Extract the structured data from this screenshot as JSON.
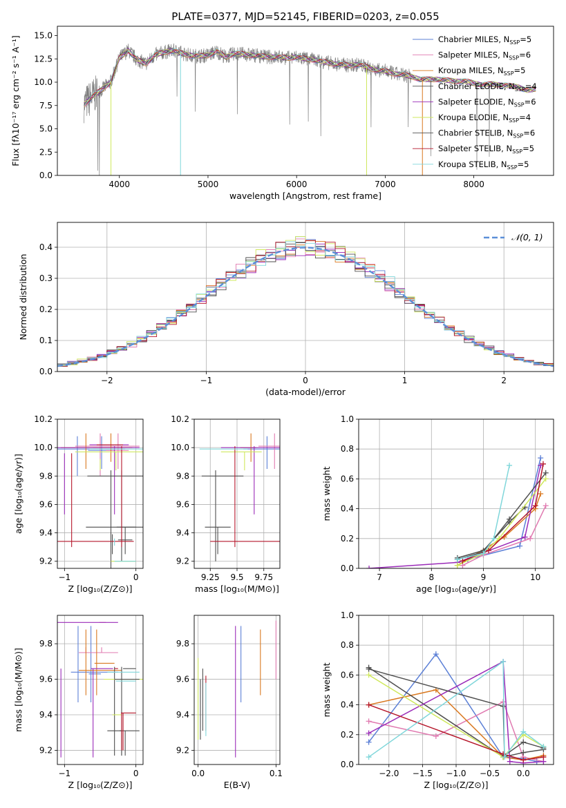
{
  "figure": {
    "title": "PLATE=0377, MJD=52145, FIBERID=0203, z=0.055"
  },
  "chart_data": [
    {
      "id": "spectrum",
      "type": "line",
      "title": "PLATE=0377, MJD=52145, FIBERID=0203, z=0.055",
      "xlabel": "wavelength [Angstrom, rest frame]",
      "ylabel": "Flux [fλ10⁻¹⁷ erg cm⁻² s⁻¹ A⁻¹]",
      "xlim": [
        3300,
        8900
      ],
      "ylim": [
        0,
        16
      ],
      "xticks": [
        4000,
        5000,
        6000,
        7000,
        8000
      ],
      "yticks": [
        0.0,
        2.5,
        5.0,
        7.5,
        10.0,
        12.5,
        15.0
      ],
      "grid": false,
      "legend_position": "top-right",
      "observed_color": "#808080",
      "spectrum_x": [
        3600,
        3700,
        3800,
        3900,
        4000,
        4100,
        4200,
        4300,
        4400,
        4500,
        4600,
        4700,
        4800,
        4900,
        5000,
        5100,
        5200,
        5300,
        5400,
        5500,
        5600,
        5700,
        5800,
        5900,
        6000,
        6100,
        6200,
        6300,
        6400,
        6500,
        6600,
        6700,
        6800,
        6900,
        7000,
        7100,
        7200,
        7300,
        7400,
        7500,
        7600,
        7700,
        7800,
        7900,
        8000,
        8100,
        8200,
        8300,
        8400,
        8500,
        8600,
        8700
      ],
      "spectrum_y": [
        7.6,
        8.5,
        9.2,
        10.0,
        12.6,
        13.4,
        12.4,
        12.0,
        12.9,
        13.2,
        13.4,
        13.1,
        12.9,
        12.8,
        12.9,
        13.3,
        12.7,
        13.1,
        13.0,
        12.9,
        12.8,
        12.7,
        12.7,
        12.6,
        12.7,
        12.5,
        12.4,
        12.2,
        12.0,
        11.9,
        11.8,
        11.9,
        11.6,
        11.3,
        11.2,
        10.9,
        10.8,
        10.6,
        10.3,
        10.3,
        10.3,
        10.2,
        10.1,
        10.1,
        9.9,
        9.7,
        9.8,
        9.7,
        9.6,
        9.5,
        9.1,
        9.3
      ],
      "series": [
        {
          "name": "Chabrier MILES, N",
          "n": "=5",
          "color": "#5b7fd6"
        },
        {
          "name": "Salpeter MILES, N",
          "n": "=6",
          "color": "#e079b0"
        },
        {
          "name": "Kroupa MILES, N",
          "n": "=5",
          "color": "#d9781f"
        },
        {
          "name": "Chabrier ELODIE, N",
          "n": "=4",
          "color": "#4d4d4d"
        },
        {
          "name": "Salpeter ELODIE, N",
          "n": "=6",
          "color": "#9a2ab8"
        },
        {
          "name": "Kroupa ELODIE, N",
          "n": "=4",
          "color": "#cfe85c"
        },
        {
          "name": "Chabrier STELIB, N",
          "n": "=6",
          "color": "#505050"
        },
        {
          "name": "Salpeter STELIB, N",
          "n": "=5",
          "color": "#b5162a"
        },
        {
          "name": "Kroupa STELIB, N",
          "n": "=5",
          "color": "#7fd6da"
        }
      ],
      "ssp_subscript": "SSP"
    },
    {
      "id": "residuals",
      "type": "line",
      "xlabel": "(data-model)/error",
      "ylabel": "Normed distribution",
      "xlim": [
        -2.5,
        2.5
      ],
      "ylim": [
        0,
        0.48
      ],
      "xticks": [
        -2,
        -1,
        0,
        1,
        2
      ],
      "yticks": [
        0.0,
        0.1,
        0.2,
        0.3,
        0.4
      ],
      "grid": true,
      "legend_position": "top-right",
      "reference_label": "𝒩(0, 1)",
      "reference_color": "#5b8fd8",
      "bin_width": 0.1,
      "bin_start": -2.5
    },
    {
      "id": "age_vs_Z",
      "type": "scatter",
      "xlabel": "Z [log₁₀(Z/Z⊙)]",
      "ylabel": "age  [log₁₀(age/yr)]",
      "xlim": [
        -1.1,
        0.1
      ],
      "ylim": [
        9.15,
        10.2
      ],
      "xticks": [
        -1,
        0
      ],
      "yticks": [
        9.2,
        9.4,
        9.6,
        9.8,
        10.0,
        10.2
      ],
      "grid": true
    },
    {
      "id": "age_vs_mass",
      "type": "scatter",
      "xlabel": "mass [log₁₀(M/M⊙)]",
      "ylabel": "",
      "xlim": [
        9.1,
        9.9
      ],
      "ylim": [
        9.15,
        10.2
      ],
      "xticks": [
        9.25,
        9.5,
        9.75
      ],
      "yticks": [
        9.2,
        9.4,
        9.6,
        9.8,
        10.0,
        10.2
      ],
      "grid": true
    },
    {
      "id": "weight_vs_age",
      "type": "line",
      "xlabel": "age  [log₁₀(age/yr)]",
      "ylabel": "mass weight",
      "xlim": [
        6.6,
        10.35
      ],
      "ylim": [
        0,
        1.0
      ],
      "xticks": [
        7,
        8,
        9,
        10
      ],
      "yticks": [
        0.0,
        0.2,
        0.4,
        0.6,
        0.8,
        1.0
      ],
      "grid": true
    },
    {
      "id": "mass_vs_Z",
      "type": "scatter",
      "xlabel": "Z [log₁₀(Z/Z⊙)]",
      "ylabel": "mass [log₁₀(M/M⊙)]",
      "xlim": [
        -1.1,
        0.1
      ],
      "ylim": [
        9.12,
        9.96
      ],
      "xticks": [
        -1,
        0
      ],
      "yticks": [
        9.2,
        9.4,
        9.6,
        9.8
      ],
      "grid": true
    },
    {
      "id": "mass_vs_ebv",
      "type": "scatter",
      "xlabel": "E(B-V)",
      "ylabel": "",
      "xlim": [
        -0.005,
        0.105
      ],
      "ylim": [
        9.12,
        9.96
      ],
      "xticks": [
        0.0,
        0.1
      ],
      "yticks": [
        9.2,
        9.4,
        9.6,
        9.8
      ],
      "grid": true
    },
    {
      "id": "weight_vs_Z",
      "type": "line",
      "xlabel": "Z [log₁₀(Z/Z⊙)]",
      "ylabel": "mass weight",
      "xlim": [
        -2.45,
        0.45
      ],
      "ylim": [
        0,
        1.0
      ],
      "xticks": [
        -2.0,
        -1.5,
        -1.0,
        -0.5,
        0.0
      ],
      "yticks": [
        0.0,
        0.2,
        0.4,
        0.6,
        0.8,
        1.0
      ],
      "grid": true
    }
  ],
  "fits": [
    {
      "name": "Chabrier MILES",
      "color": "#5b7fd6",
      "Z": [
        -0.82,
        -0.62,
        -0.48,
        -0.3
      ],
      "age": [
        9.85,
        9.98,
        10.08,
        9.99
      ],
      "mass": [
        9.61,
        9.78,
        9.92,
        9.99
      ],
      "Zm": [
        -0.81,
        -0.63,
        -0.49,
        -0.3
      ],
      "massZ": [
        9.47,
        9.63,
        9.9,
        9.64
      ],
      "ebv": 0.055,
      "ebv_m": [
        9.47,
        9.9
      ],
      "w_age": [
        [
          8.5,
          0.04
        ],
        [
          8.7,
          0.06
        ],
        [
          9.7,
          0.15
        ],
        [
          10.1,
          0.74
        ]
      ],
      "w_Z": [
        [
          -2.3,
          0.15
        ],
        [
          -1.3,
          0.74
        ],
        [
          -0.3,
          0.05
        ],
        [
          0.0,
          0.04
        ],
        [
          0.2,
          0.02
        ]
      ]
    },
    {
      "name": "Salpeter MILES",
      "color": "#e079b0",
      "Z": [
        -0.5,
        -0.37,
        -0.25,
        -0.1
      ],
      "age": [
        9.85,
        9.98,
        10.1,
        10.01
      ],
      "mass": [
        9.75,
        9.85,
        9.95,
        10.0
      ],
      "Zm": [
        -0.7,
        -0.48,
        -0.42,
        -0.3
      ],
      "massZ": [
        9.75,
        9.92,
        9.78,
        9.75
      ],
      "ebv": 0.1,
      "ebv_m": [
        9.6,
        9.93
      ],
      "w_age": [
        [
          8.6,
          0.02
        ],
        [
          9.0,
          0.09
        ],
        [
          9.9,
          0.2
        ],
        [
          10.2,
          0.42
        ]
      ],
      "w_Z": [
        [
          -2.3,
          0.29
        ],
        [
          -1.3,
          0.19
        ],
        [
          -0.3,
          0.42
        ],
        [
          0.0,
          0.05
        ],
        [
          0.3,
          0.02
        ]
      ]
    },
    {
      "name": "Kroupa MILES",
      "color": "#d9781f",
      "Z": [
        -0.7,
        -0.55,
        -0.35,
        -0.2
      ],
      "age": [
        9.9,
        10.0,
        10.1,
        10.0
      ],
      "mass": [
        9.58,
        9.63,
        9.7,
        9.68
      ],
      "Zm": [
        -0.7,
        -0.55,
        -0.3,
        -0.25
      ],
      "massZ": [
        9.51,
        9.69,
        9.88,
        9.65
      ],
      "ebv": 0.08,
      "ebv_m": [
        9.51,
        9.88
      ],
      "w_age": [
        [
          8.5,
          0.02
        ],
        [
          9.4,
          0.21
        ],
        [
          10.0,
          0.4
        ],
        [
          10.1,
          0.5
        ]
      ],
      "w_Z": [
        [
          -2.3,
          0.4
        ],
        [
          -1.3,
          0.5
        ],
        [
          -0.3,
          0.05
        ],
        [
          0.0,
          0.03
        ],
        [
          0.3,
          0.06
        ]
      ]
    },
    {
      "name": "Chabrier ELODIE",
      "color": "#4d4d4d",
      "Z": [
        -0.35,
        -0.22,
        -0.2,
        0.0
      ],
      "age": [
        9.2,
        9.44,
        9.84,
        9.44
      ],
      "mass": [
        9.25,
        9.3,
        9.33,
        9.44
      ],
      "Zm": [
        -0.3,
        -0.2,
        -0.2,
        0.0
      ],
      "massZ": [
        9.17,
        9.31,
        9.67,
        9.31
      ],
      "ebv": 0.003,
      "ebv_m": [
        9.26,
        9.6
      ],
      "w_age": [
        [
          8.5,
          0.07
        ],
        [
          9.0,
          0.12
        ],
        [
          9.5,
          0.31
        ],
        [
          9.8,
          0.41
        ]
      ],
      "w_Z": [
        [
          -2.3,
          0.65
        ],
        [
          -0.3,
          0.05
        ],
        [
          0.0,
          0.08
        ],
        [
          0.3,
          0.1
        ]
      ]
    },
    {
      "name": "Salpeter ELODIE",
      "color": "#9a2ab8",
      "Z": [
        -1.0,
        -0.6,
        -0.3,
        -0.1
      ],
      "age": [
        10.01,
        10.02,
        9.53,
        10.0
      ],
      "mass": [
        9.4,
        9.66,
        9.93,
        9.99
      ],
      "Zm": [
        -1.05,
        -0.6,
        -0.32,
        -0.3
      ],
      "massZ": [
        9.66,
        9.66,
        9.16,
        9.92
      ],
      "ebv": 0.048,
      "ebv_m": [
        9.16,
        9.9
      ],
      "w_age": [
        [
          6.8,
          0.0
        ],
        [
          8.5,
          0.04
        ],
        [
          9.8,
          0.21
        ],
        [
          10.1,
          0.69
        ]
      ],
      "w_Z": [
        [
          -2.3,
          0.21
        ],
        [
          -0.3,
          0.69
        ],
        [
          -0.2,
          0.02
        ],
        [
          0.0,
          0.01
        ],
        [
          0.3,
          0.02
        ]
      ]
    },
    {
      "name": "Kroupa ELODIE",
      "color": "#cfe85c",
      "Z": [
        -0.5,
        -0.3,
        -0.28,
        0.0
      ],
      "age": [
        9.97,
        9.2,
        9.84,
        9.97
      ],
      "mass": [
        9.4,
        9.57,
        9.6,
        9.73
      ],
      "Zm": [
        -0.35,
        -0.3,
        -0.2,
        0.05
      ],
      "massZ": [
        9.58,
        9.4,
        9.58,
        9.6
      ],
      "ebv": 0.0,
      "ebv_m": [
        9.26,
        9.72
      ],
      "w_age": [
        [
          8.5,
          0.02
        ],
        [
          9.0,
          0.1
        ],
        [
          9.3,
          0.2
        ],
        [
          10.2,
          0.6
        ]
      ],
      "w_Z": [
        [
          -2.3,
          0.6
        ],
        [
          -0.3,
          0.05
        ],
        [
          0.0,
          0.2
        ],
        [
          0.3,
          0.12
        ]
      ]
    },
    {
      "name": "Chabrier STELIB",
      "color": "#505050",
      "Z": [
        -0.33,
        -0.2,
        -0.15,
        -0.05
      ],
      "age": [
        9.44,
        9.35,
        9.25,
        9.8
      ],
      "mass": [
        9.22,
        9.32,
        9.44,
        9.56
      ],
      "Zm": [
        -0.2,
        -0.15,
        0.0,
        0.0
      ],
      "massZ": [
        9.17,
        9.66,
        9.31,
        9.6
      ],
      "ebv": 0.006,
      "ebv_m": [
        9.31,
        9.66
      ],
      "w_age": [
        [
          8.5,
          0.06
        ],
        [
          9.0,
          0.11
        ],
        [
          9.5,
          0.33
        ],
        [
          10.2,
          0.64
        ]
      ],
      "w_Z": [
        [
          -2.3,
          0.64
        ],
        [
          -0.3,
          0.39
        ],
        [
          -0.28,
          0.06
        ],
        [
          0.0,
          0.15
        ],
        [
          0.3,
          0.11
        ]
      ]
    },
    {
      "name": "Salpeter STELIB",
      "color": "#b5162a",
      "Z": [
        -0.9,
        -0.5,
        -0.2,
        -0.18
      ],
      "age": [
        10.01,
        10.02,
        9.3,
        9.34
      ],
      "mass": [
        9.3,
        9.48,
        9.5,
        9.98
      ],
      "Zm": [
        -0.2,
        -0.18,
        0.0,
        -0.3
      ],
      "massZ": [
        9.2,
        9.41,
        9.41,
        9.66
      ],
      "ebv": 0.01,
      "ebv_m": [
        9.31,
        9.62
      ],
      "w_age": [
        [
          8.6,
          0.05
        ],
        [
          9.1,
          0.12
        ],
        [
          10.0,
          0.42
        ],
        [
          10.15,
          0.7
        ]
      ],
      "w_Z": [
        [
          -2.3,
          0.4
        ],
        [
          -0.3,
          0.07
        ],
        [
          0.0,
          0.03
        ],
        [
          0.3,
          0.05
        ]
      ]
    },
    {
      "name": "Kroupa STELIB",
      "color": "#7fd6da",
      "Z": [
        -0.3,
        -0.25,
        -0.12,
        0.0
      ],
      "age": [
        9.36,
        9.2,
        9.36,
        9.99
      ],
      "mass": [
        9.2,
        9.3,
        9.36,
        9.6
      ],
      "Zm": [
        -0.3,
        -0.25,
        0.0,
        0.0
      ],
      "massZ": [
        9.28,
        9.59,
        9.28,
        9.64
      ],
      "ebv": 0.01,
      "ebv_m": [
        9.28,
        9.58
      ],
      "w_age": [
        [
          8.5,
          0.06
        ],
        [
          9.0,
          0.1
        ],
        [
          9.2,
          0.2
        ],
        [
          9.5,
          0.69
        ]
      ],
      "w_Z": [
        [
          -2.3,
          0.05
        ],
        [
          -0.3,
          0.69
        ],
        [
          -0.28,
          0.05
        ],
        [
          0.0,
          0.22
        ],
        [
          0.3,
          0.12
        ]
      ]
    }
  ]
}
